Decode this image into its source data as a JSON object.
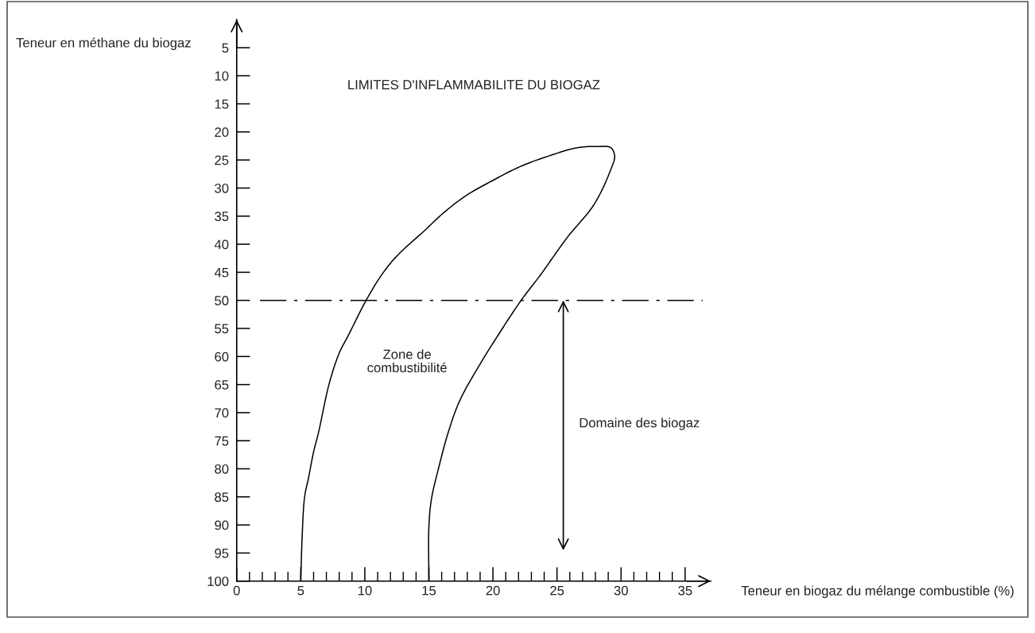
{
  "chart_data": {
    "type": "line",
    "title": "LIMITES D'INFLAMMABILITE DU BIOGAZ",
    "xlabel": "Teneur en biogaz du mélange combustible (%)",
    "ylabel": "Teneur en méthane du biogaz",
    "series": [
      {
        "color": "#000000",
        "x": [
          5,
          5.1,
          5.3,
          5.6,
          6.0,
          6.4,
          7.2,
          8.0,
          8.7,
          10.1,
          11.3,
          12.5,
          14.7,
          16.2,
          18.0,
          19.7,
          22.1,
          24.6,
          26.6,
          28.2,
          29.2,
          29.5,
          29.2,
          27.9,
          25.8,
          23.7,
          22.2,
          20.6,
          18.8,
          17.4,
          16.5,
          15.8,
          15.2,
          15.0,
          15
        ],
        "values": [
          100,
          92.6,
          85,
          81.7,
          77,
          73.4,
          65,
          59.4,
          56.3,
          50,
          45.5,
          42.1,
          37.5,
          34.3,
          31.2,
          29,
          26.2,
          24.1,
          22.8,
          22.6,
          22.8,
          24.3,
          26.7,
          32.9,
          38.8,
          45.5,
          50,
          55.5,
          62.1,
          67.9,
          73.6,
          79.5,
          85.4,
          90.4,
          100
        ]
      }
    ],
    "xlim": [
      0,
      37
    ],
    "xticks": [
      0,
      {
        "value": 1,
        "label": null
      },
      {
        "value": 2,
        "label": null
      },
      {
        "value": 3,
        "label": null
      },
      {
        "value": 4,
        "label": null
      },
      5,
      {
        "value": 6,
        "label": null
      },
      {
        "value": 7,
        "label": null
      },
      {
        "value": 8,
        "label": null
      },
      {
        "value": 9,
        "label": null
      },
      10,
      {
        "value": 11,
        "label": null
      },
      {
        "value": 12,
        "label": null
      },
      {
        "value": 13,
        "label": null
      },
      {
        "value": 14,
        "label": null
      },
      15,
      {
        "value": 16,
        "label": null
      },
      {
        "value": 17,
        "label": null
      },
      {
        "value": 18,
        "label": null
      },
      {
        "value": 19,
        "label": null
      },
      20,
      {
        "value": 21,
        "label": null
      },
      {
        "value": 22,
        "label": null
      },
      {
        "value": 23,
        "label": null
      },
      {
        "value": 24,
        "label": null
      },
      25,
      {
        "value": 26,
        "label": null
      },
      {
        "value": 27,
        "label": null
      },
      {
        "value": 28,
        "label": null
      },
      {
        "value": 29,
        "label": null
      },
      30,
      {
        "value": 31,
        "label": null
      },
      {
        "value": 32,
        "label": null
      },
      {
        "value": 33,
        "label": null
      },
      {
        "value": 34,
        "label": null
      },
      35
    ],
    "ylim": [
      100,
      0
    ],
    "yticks": [
      5,
      10,
      15,
      20,
      25,
      30,
      35,
      40,
      45,
      50,
      55,
      60,
      65,
      70,
      75,
      80,
      85,
      90,
      95,
      100
    ],
    "ref_lines": [
      {
        "axis": "y",
        "value": 50,
        "line_style": "dashdot",
        "color": "#000000"
      }
    ],
    "annotations": [
      "Zone de\ncombustibilité",
      "Domaine des biogaz"
    ]
  }
}
